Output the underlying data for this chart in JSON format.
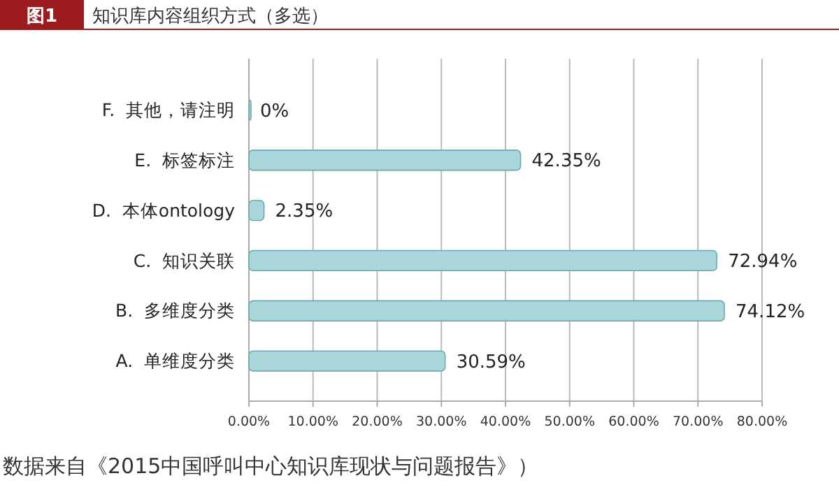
{
  "chart_data": {
    "type": "bar",
    "orientation": "horizontal",
    "title": "知识库内容组织方式（多选）",
    "categories": [
      "F.  其他，请注明",
      "E.  标签标注",
      "D.  本体ontology",
      "C.  知识关联",
      "B.  多维度分类",
      "A.  单维度分类"
    ],
    "values": [
      0,
      42.35,
      2.35,
      72.94,
      74.12,
      30.59
    ],
    "value_labels": [
      "0%",
      "42.35%",
      "2.35%",
      "72.94%",
      "74.12%",
      "30.59%"
    ],
    "color": "#a9d6da",
    "xlim": [
      0,
      80
    ],
    "xticks": [
      {
        "value": 0,
        "label": "0.00%"
      },
      {
        "value": 10,
        "label": "10.00%"
      },
      {
        "value": 20,
        "label": "20.00%"
      },
      {
        "value": 30,
        "label": "30.00%"
      },
      {
        "value": 40,
        "label": "40.00%"
      },
      {
        "value": 50,
        "label": "50.00%"
      },
      {
        "value": 60,
        "label": "60.00%"
      },
      {
        "value": 70,
        "label": "70.00%"
      },
      {
        "value": 80,
        "label": "80.00%"
      }
    ],
    "grid": "x",
    "annotations": [
      "图1",
      "数据来自《2015中国呼叫中心知识库现状与问题报告》）"
    ]
  }
}
